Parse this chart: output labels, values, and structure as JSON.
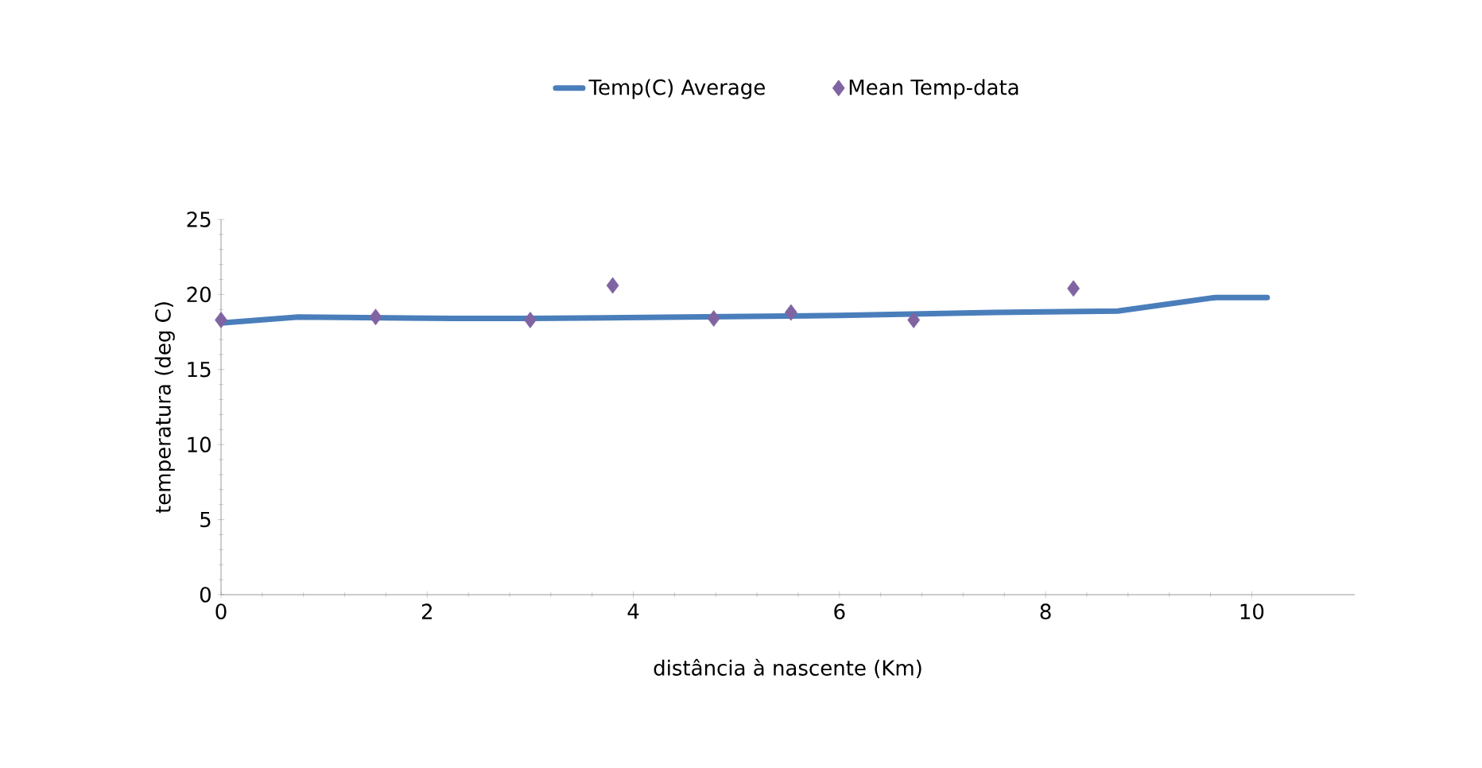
{
  "chart_data": {
    "type": "line",
    "xlabel": "distância à nascente (Km)",
    "ylabel": "temperatura (deg C)",
    "xlim": [
      0,
      11
    ],
    "xticks": [
      0,
      2,
      4,
      6,
      8,
      10
    ],
    "ylim": [
      0,
      25
    ],
    "yticks": [
      0,
      5,
      10,
      15,
      20,
      25
    ],
    "legend": "top",
    "grid": false,
    "series": [
      {
        "name": "Temp(C) Average",
        "color": "#4a7ebb",
        "marker": "none",
        "line_style": "solid",
        "x": [
          0,
          0.75,
          2.25,
          3,
          4.5,
          6,
          7.5,
          8.7,
          9.65,
          10.15
        ],
        "values": [
          18.1,
          18.5,
          18.4,
          18.4,
          18.5,
          18.6,
          18.8,
          18.9,
          19.8,
          19.8
        ]
      },
      {
        "name": "Mean Temp-data",
        "type": "scatter",
        "color": "#8064a2",
        "marker": "diamond",
        "x": [
          0,
          1.5,
          3,
          3.8,
          4.78,
          5.53,
          6.72,
          8.27
        ],
        "values": [
          18.3,
          18.5,
          18.3,
          20.6,
          18.4,
          18.8,
          18.3,
          20.4
        ]
      }
    ]
  }
}
